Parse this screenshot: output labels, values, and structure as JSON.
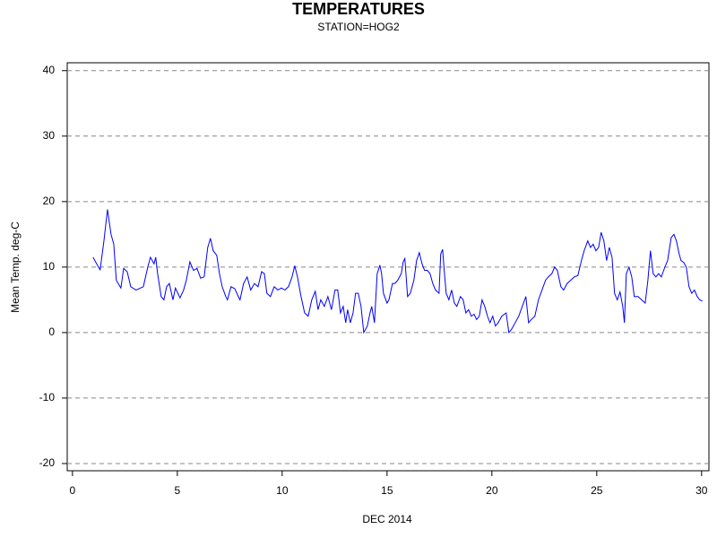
{
  "chart_data": {
    "type": "line",
    "title": "TEMPERATURES",
    "subtitle": "STATION=HOG2",
    "xlabel": "DEC 2014",
    "ylabel": "Mean Temp. deg-C",
    "xlim": [
      -0.25,
      30.35
    ],
    "ylim": [
      -21.1,
      41.2
    ],
    "xticks": [
      0,
      5,
      10,
      15,
      20,
      25,
      30
    ],
    "yticks": [
      -20,
      -10,
      0,
      10,
      20,
      30,
      40
    ],
    "grid": true,
    "series": [
      {
        "name": "Mean Temp",
        "color": "#0000ff",
        "x": [
          0.98,
          1.24,
          1.32,
          1.5,
          1.67,
          1.84,
          1.97,
          2.09,
          2.31,
          2.44,
          2.61,
          2.78,
          3.03,
          3.38,
          3.59,
          3.72,
          3.89,
          3.97,
          4.06,
          4.23,
          4.36,
          4.49,
          4.62,
          4.79,
          4.91,
          5.13,
          5.3,
          5.43,
          5.6,
          5.77,
          5.94,
          6.11,
          6.28,
          6.45,
          6.58,
          6.71,
          6.88,
          7.01,
          7.14,
          7.31,
          7.39,
          7.56,
          7.74,
          7.91,
          7.99,
          8.16,
          8.33,
          8.5,
          8.68,
          8.85,
          9.02,
          9.15,
          9.27,
          9.44,
          9.62,
          9.79,
          9.96,
          10.13,
          10.3,
          10.47,
          10.6,
          10.73,
          10.9,
          11.07,
          11.24,
          11.41,
          11.58,
          11.71,
          11.84,
          12.01,
          12.18,
          12.35,
          12.52,
          12.65,
          12.78,
          12.91,
          13.03,
          13.12,
          13.25,
          13.38,
          13.5,
          13.63,
          13.76,
          13.89,
          14.06,
          14.19,
          14.27,
          14.4,
          14.53,
          14.66,
          14.74,
          14.83,
          15.0,
          15.09,
          15.26,
          15.38,
          15.51,
          15.68,
          15.77,
          15.85,
          15.98,
          16.11,
          16.28,
          16.41,
          16.54,
          16.67,
          16.79,
          16.92,
          17.05,
          17.18,
          17.31,
          17.48,
          17.56,
          17.65,
          17.74,
          17.82,
          17.95,
          18.08,
          18.21,
          18.33,
          18.5,
          18.63,
          18.76,
          18.89,
          19.02,
          19.15,
          19.27,
          19.4,
          19.53,
          19.66,
          19.79,
          19.91,
          20.04,
          20.17,
          20.3,
          20.47,
          20.68,
          20.81,
          20.94,
          21.11,
          21.28,
          21.45,
          21.62,
          21.75,
          21.88,
          22.05,
          22.22,
          22.39,
          22.56,
          22.69,
          22.86,
          22.99,
          23.12,
          23.29,
          23.42,
          23.59,
          23.76,
          23.93,
          24.1,
          24.27,
          24.4,
          24.57,
          24.7,
          24.83,
          24.96,
          25.09,
          25.21,
          25.34,
          25.47,
          25.6,
          25.73,
          25.85,
          25.98,
          26.11,
          26.24,
          26.32,
          26.41,
          26.54,
          26.67,
          26.79,
          26.97,
          27.14,
          27.31,
          27.44,
          27.56,
          27.69,
          27.82,
          27.95,
          28.08,
          28.25,
          28.38,
          28.55,
          28.68,
          28.8,
          28.93,
          29.02,
          29.15,
          29.27,
          29.4,
          29.53,
          29.66,
          29.79,
          29.91,
          30.04
        ],
        "values": [
          11.5,
          10,
          9.6,
          14,
          18.8,
          15,
          13.5,
          8,
          6.8,
          9.8,
          9.3,
          7,
          6.5,
          7,
          10,
          11.5,
          10.5,
          11.5,
          9,
          5.5,
          5,
          7,
          7.5,
          5,
          6.8,
          5.3,
          6.5,
          8,
          10.8,
          9.5,
          9.8,
          8.3,
          8.5,
          13,
          14.4,
          12.5,
          11.8,
          9,
          7,
          5.5,
          5,
          7,
          6.7,
          5.5,
          5,
          7.5,
          8.5,
          6.5,
          7.5,
          7,
          9.3,
          9,
          6,
          5.5,
          7,
          6.5,
          6.8,
          6.5,
          7,
          8.5,
          10.2,
          8.5,
          5.5,
          3,
          2.5,
          5,
          6.3,
          3.5,
          5,
          4,
          5.5,
          3.5,
          6.5,
          6.5,
          3,
          4,
          1.5,
          3.5,
          1.5,
          3,
          6,
          6,
          4,
          0,
          1,
          3,
          4,
          1.5,
          9,
          10.3,
          9,
          6,
          4.5,
          5,
          7.5,
          7.5,
          8,
          9,
          10.8,
          11.3,
          5.5,
          6,
          8,
          11,
          12.2,
          10.5,
          9.5,
          9.5,
          9,
          7.5,
          6.5,
          6,
          12,
          12.7,
          9,
          6,
          5,
          6.5,
          4.5,
          4,
          5.5,
          5,
          3,
          3.5,
          2.5,
          2.8,
          2,
          2.5,
          5,
          4,
          2.5,
          1.5,
          2.5,
          1,
          1.5,
          2.5,
          3,
          0,
          0.5,
          1.5,
          2.5,
          4,
          5.5,
          1.5,
          2,
          2.5,
          5,
          6.5,
          8,
          8.5,
          9,
          10,
          9.5,
          7,
          6.5,
          7.5,
          8,
          8.5,
          8.7,
          11,
          12.5,
          14,
          13,
          13.5,
          12.5,
          13,
          15.3,
          14,
          11,
          13,
          11.5,
          6,
          5,
          6.2,
          4,
          1.5,
          9,
          10,
          8.5,
          5.5,
          5.5,
          5,
          4.5,
          8,
          12.5,
          9,
          8.5,
          9,
          8.5,
          10,
          11,
          14.5,
          15,
          14,
          12,
          11,
          10.7,
          10,
          7,
          6,
          6.5,
          5.5,
          5,
          4.8
        ]
      }
    ]
  }
}
